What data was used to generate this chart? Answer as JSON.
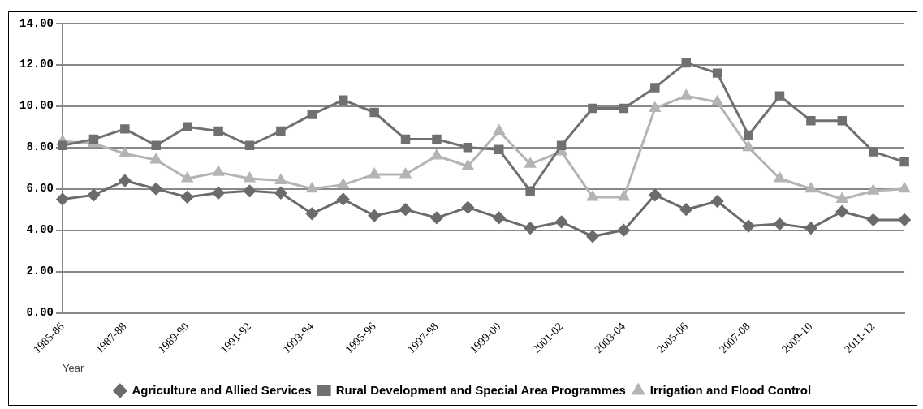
{
  "chart_data": {
    "type": "line",
    "xlabel": "Year",
    "categories": [
      "1985-86",
      null,
      "1987-88",
      null,
      "1989-90",
      null,
      "1991-92",
      null,
      "1993-94",
      null,
      "1995-96",
      null,
      "1997-98",
      null,
      "1999-00",
      null,
      "2001-02",
      null,
      "2003-04",
      null,
      "2005-06",
      null,
      "2007-08",
      null,
      "2009-10",
      null,
      "2011-12",
      null
    ],
    "series": [
      {
        "name": "Agriculture and Allied Services",
        "color": "#6b6b6b",
        "marker": "diamond",
        "values": [
          5.5,
          5.7,
          6.4,
          6.0,
          5.6,
          5.8,
          5.9,
          5.8,
          4.8,
          5.5,
          4.7,
          5.0,
          4.6,
          5.1,
          4.6,
          4.1,
          4.4,
          3.7,
          4.0,
          5.7,
          5.0,
          5.4,
          4.2,
          4.3,
          4.1,
          4.9,
          4.5,
          4.5
        ]
      },
      {
        "name": "Rural Development and Special Area Programmes",
        "color": "#707070",
        "marker": "square",
        "values": [
          8.1,
          8.4,
          8.9,
          8.1,
          9.0,
          8.8,
          8.1,
          8.8,
          9.6,
          10.3,
          9.7,
          8.4,
          8.4,
          8.0,
          7.9,
          5.9,
          8.1,
          9.9,
          9.9,
          10.9,
          12.1,
          11.6,
          8.6,
          10.5,
          9.3,
          9.3,
          7.8,
          7.3
        ]
      },
      {
        "name": "Irrigation and Flood Control",
        "color": "#b4b4b4",
        "marker": "triangle",
        "values": [
          8.3,
          8.2,
          7.7,
          7.4,
          6.5,
          6.8,
          6.5,
          6.4,
          6.0,
          6.2,
          6.7,
          6.7,
          7.6,
          7.1,
          8.8,
          7.2,
          7.8,
          5.6,
          5.6,
          9.9,
          10.5,
          10.2,
          8.0,
          6.5,
          6.0,
          5.5,
          5.9,
          6.0
        ]
      }
    ],
    "ylim": [
      0,
      14
    ],
    "yticks": [
      {
        "value": 0,
        "label": "0.00"
      },
      {
        "value": 2,
        "label": "2.00"
      },
      {
        "value": 4,
        "label": "4.00"
      },
      {
        "value": 6,
        "label": "6.00"
      },
      {
        "value": 8,
        "label": "8.00"
      },
      {
        "value": 10,
        "label": "10.00"
      },
      {
        "value": 12,
        "label": "12.00"
      },
      {
        "value": 14,
        "label": "14.00"
      }
    ],
    "grid": "y",
    "legend": "bottom",
    "line_style": "solid"
  }
}
